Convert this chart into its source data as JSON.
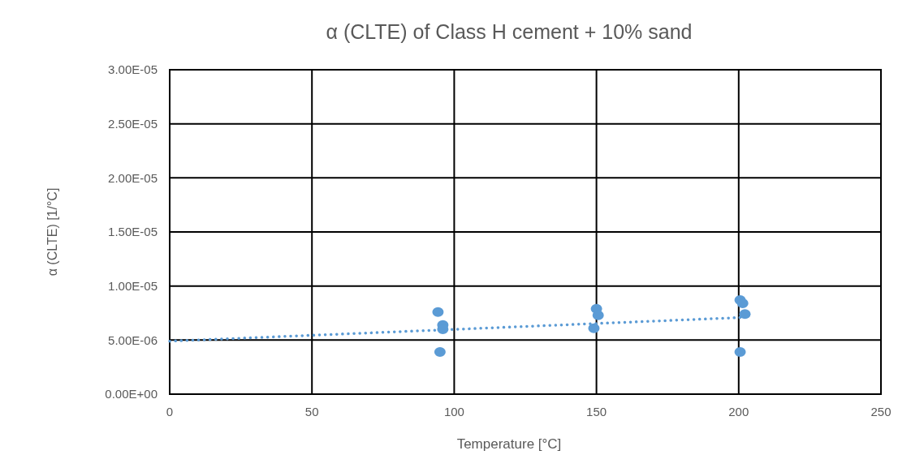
{
  "chart_data": {
    "type": "scatter",
    "title": "α (CLTE) of Class H cement + 10% sand",
    "xlabel": "Temperature [°C]",
    "ylabel": "α (CLTE) [1/°C]",
    "xlim": [
      0,
      250
    ],
    "xticks": [
      0,
      50,
      100,
      150,
      200,
      250
    ],
    "ylim": [
      0,
      3e-05
    ],
    "yticks": [
      {
        "value": 0,
        "label": "0.00E+00"
      },
      {
        "value": 5e-06,
        "label": "5.00E-06"
      },
      {
        "value": 1e-05,
        "label": "1.00E-05"
      },
      {
        "value": 1.5e-05,
        "label": "1.50E-05"
      },
      {
        "value": 2e-05,
        "label": "2.00E-05"
      },
      {
        "value": 2.5e-05,
        "label": "2.50E-05"
      },
      {
        "value": 3e-05,
        "label": "3.00E-05"
      }
    ],
    "grid": true,
    "marker": "circle",
    "series": [
      {
        "color": "#5b9bd5",
        "x": [
          94.3,
          96,
          96,
          95,
          150,
          150.6,
          149.1,
          200.5,
          201.4,
          202.2,
          200.5
        ],
        "values": [
          7.6e-06,
          6.4e-06,
          6e-06,
          3.9e-06,
          7.9e-06,
          7.3e-06,
          6.1e-06,
          8.7e-06,
          8.4e-06,
          7.4e-06,
          3.9e-06
        ]
      },
      {
        "type": "line",
        "color": "#5b9bd5",
        "line_style": "dotted",
        "marker": "none",
        "x": [
          0,
          202
        ],
        "values": [
          4.9e-06,
          7.1e-06
        ]
      }
    ]
  }
}
